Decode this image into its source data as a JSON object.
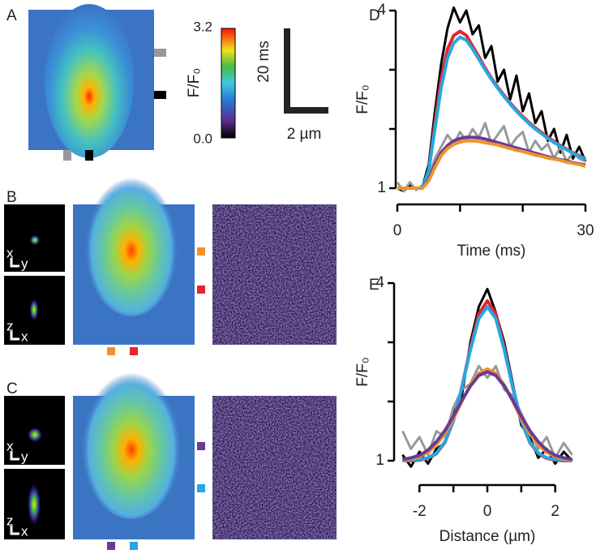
{
  "panels": {
    "a": "A",
    "b": "B",
    "c": "C",
    "d": "D",
    "e": "E"
  },
  "colorbar": {
    "max": "3.2",
    "min": "0.0",
    "label": "F/F₀"
  },
  "scale_bar": {
    "time": "20 ms",
    "distance": "2 µm"
  },
  "axes_insets": {
    "b_top": [
      "x",
      "y"
    ],
    "b_bottom": [
      "z",
      "x"
    ],
    "c_top": [
      "x",
      "y"
    ],
    "c_bottom": [
      "z",
      "x"
    ]
  },
  "chart_data": [
    {
      "type": "line",
      "xlabel": "Time (ms)",
      "ylabel": "F/F₀",
      "xlim": [
        0,
        30
      ],
      "ylim": [
        1,
        4
      ],
      "xticks": [
        0,
        30
      ],
      "minor_xticks": [
        10,
        20
      ],
      "yticks": [
        1,
        4
      ],
      "minor_yticks": [
        2,
        3
      ],
      "x": [
        0,
        1,
        2,
        3,
        4,
        5,
        6,
        7,
        8,
        9,
        10,
        11,
        12,
        13,
        14,
        15,
        16,
        17,
        18,
        19,
        20,
        21,
        22,
        23,
        24,
        25,
        26,
        27,
        28,
        29,
        30
      ],
      "series": [
        {
          "color": "#000000",
          "values": [
            1.0,
            0.95,
            1.05,
            0.98,
            1.02,
            1.4,
            2.3,
            3.1,
            3.7,
            4.05,
            3.8,
            4.0,
            3.6,
            3.75,
            3.2,
            3.4,
            2.8,
            3.0,
            2.5,
            2.9,
            2.3,
            2.6,
            2.1,
            2.3,
            1.8,
            2.0,
            1.6,
            1.9,
            1.5,
            1.7,
            1.45
          ]
        },
        {
          "color": "#999999",
          "values": [
            1.1,
            0.95,
            1.1,
            0.97,
            1.05,
            1.2,
            1.5,
            1.7,
            1.9,
            1.75,
            1.95,
            1.8,
            2.0,
            1.85,
            2.1,
            1.75,
            1.9,
            2.05,
            1.7,
            1.85,
            1.95,
            1.6,
            1.8,
            1.65,
            1.75,
            1.5,
            1.7,
            1.45,
            1.6,
            1.5,
            1.45
          ]
        },
        {
          "color": "#e8242a",
          "values": [
            1,
            1,
            1,
            1,
            1,
            1.3,
            2.1,
            2.85,
            3.35,
            3.58,
            3.65,
            3.58,
            3.4,
            3.22,
            3.03,
            2.86,
            2.71,
            2.57,
            2.44,
            2.32,
            2.21,
            2.11,
            2.02,
            1.94,
            1.86,
            1.79,
            1.72,
            1.66,
            1.6,
            1.55,
            1.5
          ]
        },
        {
          "color": "#24a8e0",
          "values": [
            1,
            1,
            1,
            1,
            1,
            1.3,
            2.0,
            2.7,
            3.2,
            3.45,
            3.55,
            3.5,
            3.35,
            3.18,
            3.0,
            2.84,
            2.69,
            2.55,
            2.42,
            2.3,
            2.19,
            2.09,
            2.0,
            1.92,
            1.84,
            1.77,
            1.71,
            1.65,
            1.59,
            1.54,
            1.49
          ]
        },
        {
          "color": "#6a3a96",
          "values": [
            1,
            1,
            1,
            1,
            1,
            1.15,
            1.4,
            1.6,
            1.72,
            1.8,
            1.84,
            1.86,
            1.86,
            1.85,
            1.83,
            1.8,
            1.77,
            1.74,
            1.71,
            1.68,
            1.65,
            1.62,
            1.59,
            1.56,
            1.53,
            1.5,
            1.48,
            1.46,
            1.43,
            1.41,
            1.39
          ]
        },
        {
          "color": "#f0922e",
          "values": [
            1,
            1,
            1,
            1,
            1,
            1.12,
            1.35,
            1.55,
            1.67,
            1.74,
            1.78,
            1.8,
            1.8,
            1.79,
            1.77,
            1.75,
            1.73,
            1.7,
            1.67,
            1.64,
            1.62,
            1.59,
            1.56,
            1.54,
            1.51,
            1.49,
            1.47,
            1.44,
            1.42,
            1.4,
            1.37
          ]
        }
      ]
    },
    {
      "type": "line",
      "xlabel": "Distance (µm)",
      "ylabel": "F/F₀",
      "xlim": [
        -2.7,
        2.7
      ],
      "ylim": [
        1,
        4
      ],
      "xticks": [
        -2,
        0,
        2
      ],
      "minor_xticks": [
        -1,
        1
      ],
      "yticks": [
        1,
        4
      ],
      "minor_yticks": [
        2,
        3
      ],
      "x": [
        -2.5,
        -2.25,
        -2,
        -1.75,
        -1.5,
        -1.25,
        -1,
        -0.75,
        -0.5,
        -0.25,
        0,
        0.25,
        0.5,
        0.75,
        1,
        1.25,
        1.5,
        1.75,
        2,
        2.25,
        2.5
      ],
      "series": [
        {
          "color": "#000000",
          "values": [
            1.1,
            0.9,
            1.15,
            0.95,
            1.2,
            1.3,
            1.8,
            2.1,
            3.0,
            3.6,
            3.9,
            3.5,
            3.0,
            2.3,
            1.6,
            1.4,
            1.05,
            1.2,
            0.95,
            1.15,
            1.0
          ]
        },
        {
          "color": "#999999",
          "values": [
            1.5,
            1.2,
            1.4,
            1.1,
            1.5,
            1.4,
            1.9,
            2.2,
            2.3,
            2.6,
            2.4,
            2.6,
            2.2,
            2.1,
            1.8,
            1.5,
            1.2,
            1.4,
            1.05,
            1.3,
            1.1
          ]
        },
        {
          "color": "#e8242a",
          "values": [
            1.0,
            1.0,
            1.01,
            1.04,
            1.12,
            1.31,
            1.67,
            2.24,
            2.91,
            3.48,
            3.7,
            3.48,
            2.91,
            2.24,
            1.67,
            1.31,
            1.12,
            1.04,
            1.01,
            1.0,
            1.0
          ]
        },
        {
          "color": "#24a8e0",
          "values": [
            1.0,
            1.01,
            1.02,
            1.05,
            1.13,
            1.32,
            1.68,
            2.23,
            2.87,
            3.4,
            3.6,
            3.4,
            2.87,
            2.23,
            1.68,
            1.32,
            1.13,
            1.05,
            1.02,
            1.01,
            1.0
          ]
        },
        {
          "color": "#f0922e",
          "values": [
            1.01,
            1.03,
            1.07,
            1.14,
            1.27,
            1.46,
            1.71,
            2.0,
            2.28,
            2.48,
            2.55,
            2.48,
            2.28,
            2.0,
            1.71,
            1.46,
            1.27,
            1.14,
            1.07,
            1.03,
            1.01
          ]
        },
        {
          "color": "#6a3a96",
          "values": [
            1.02,
            1.05,
            1.09,
            1.18,
            1.32,
            1.51,
            1.75,
            2.02,
            2.26,
            2.44,
            2.5,
            2.44,
            2.26,
            2.02,
            1.75,
            1.51,
            1.32,
            1.18,
            1.09,
            1.05,
            1.02
          ]
        }
      ]
    }
  ]
}
